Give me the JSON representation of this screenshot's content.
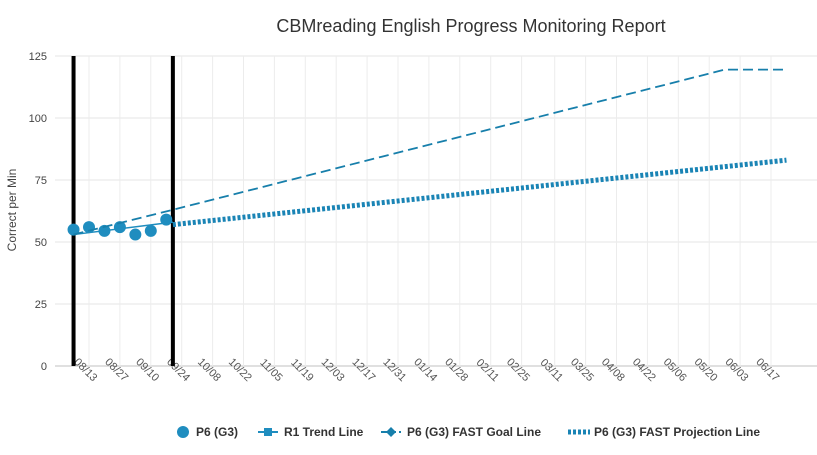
{
  "chart_data": {
    "type": "line",
    "title": "CBMreading English Progress Monitoring Report",
    "ylabel": "Correct per Min",
    "xlabel": "",
    "ylim": [
      0,
      125
    ],
    "yticks": [
      0,
      25,
      50,
      75,
      100,
      125
    ],
    "grid": true,
    "legend_position": "bottom",
    "x_ticks": [
      "08/13",
      "08/27",
      "09/10",
      "09/24",
      "10/08",
      "10/22",
      "11/05",
      "11/19",
      "12/03",
      "12/17",
      "12/31",
      "01/14",
      "01/28",
      "02/11",
      "02/25",
      "03/11",
      "03/25",
      "04/08",
      "04/22",
      "05/06",
      "05/20",
      "06/03",
      "06/17"
    ],
    "vertical_markers": [
      "08/06",
      "09/20"
    ],
    "series": [
      {
        "name": "P6 (G3)",
        "style": "markers",
        "color": "#1f8dbf",
        "x": [
          "08/06",
          "08/13",
          "08/20",
          "08/27",
          "09/03",
          "09/10",
          "09/17"
        ],
        "y": [
          55,
          56,
          54.5,
          56,
          53,
          54.5,
          59
        ]
      },
      {
        "name": "R1 Trend Line",
        "style": "solid",
        "color": "#1f8dbf",
        "x": [
          "08/06",
          "09/20"
        ],
        "y": [
          53,
          58
        ]
      },
      {
        "name": "P6 (G3) FAST Goal Line",
        "style": "dashed",
        "color": "#177fab",
        "x": [
          "08/06",
          "09/20",
          "05/27",
          "06/24"
        ],
        "y": [
          53,
          63,
          119.5,
          119.5
        ]
      },
      {
        "name": "P6 (G3) FAST Projection Line",
        "style": "dotted-thick",
        "color": "#1a84b5",
        "x": [
          "09/20",
          "06/24"
        ],
        "y": [
          57,
          83
        ]
      }
    ]
  }
}
